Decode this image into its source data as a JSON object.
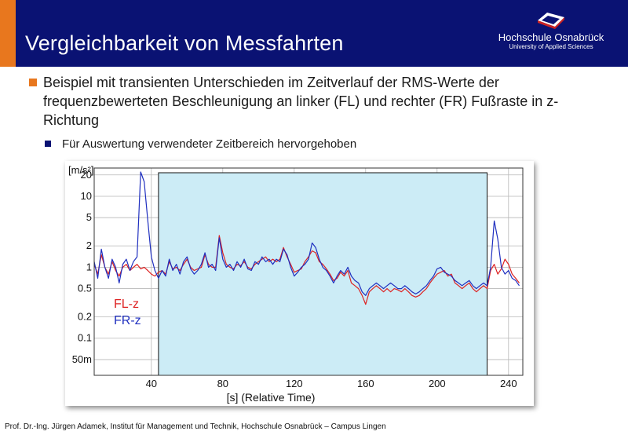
{
  "slide": {
    "title": "Vergleichbarkeit von Messfahrten",
    "logo_name": "Hochschule Osnabrück",
    "logo_sub": "University of Applied Sciences",
    "bullet1": "Beispiel mit transienten Unterschieden im Zeitverlauf der RMS-Werte der frequenzbewerteten Beschleunigung an linker (FL) und rechter (FR) Fußraste in z-Richtung",
    "bullet2": "Für Auswertung verwendeter Zeitbereich hervorgehoben",
    "footer": "Prof. Dr.-Ing. Jürgen Adamek, Institut für Management und Technik, Hochschule Osnabrück – Campus Lingen"
  },
  "colors": {
    "header_bg": "#0a1273",
    "accent": "#e8771e",
    "highlight_fill": "#ccecf6",
    "fl": "#dd2222",
    "fr": "#1f2fbf"
  },
  "chart_data": {
    "type": "line",
    "ylabel": "[m/s²]",
    "xlabel": "[s] (Relative Time)",
    "y_scale": "log",
    "xlim": [
      8,
      248
    ],
    "ylim": [
      0.03,
      25
    ],
    "x_ticks": [
      40,
      80,
      120,
      160,
      200,
      240
    ],
    "x_tick_labels": [
      "40",
      "80",
      "120",
      "160",
      "200",
      "240"
    ],
    "y_ticks": [
      20,
      10,
      5,
      2,
      1,
      0.5,
      0.2,
      0.1,
      0.05
    ],
    "y_tick_labels": [
      "20",
      "10",
      "5",
      "2",
      "1",
      "0.5",
      "0.2",
      "0.1",
      "50m"
    ],
    "grid": true,
    "highlight_range": [
      44,
      228
    ],
    "legend_position": "left-middle",
    "series": [
      {
        "name": "FL-z",
        "color": "#dd2222",
        "x": [
          8,
          10,
          12,
          14,
          16,
          18,
          20,
          22,
          24,
          26,
          28,
          30,
          32,
          34,
          36,
          38,
          40,
          42,
          44,
          46,
          48,
          50,
          52,
          54,
          56,
          58,
          60,
          62,
          64,
          66,
          68,
          70,
          72,
          74,
          76,
          78,
          80,
          82,
          84,
          86,
          88,
          90,
          92,
          94,
          96,
          98,
          100,
          102,
          104,
          106,
          108,
          110,
          112,
          114,
          116,
          118,
          120,
          122,
          124,
          126,
          128,
          130,
          132,
          134,
          136,
          138,
          140,
          142,
          144,
          146,
          148,
          150,
          152,
          154,
          156,
          158,
          160,
          162,
          164,
          166,
          168,
          170,
          172,
          174,
          176,
          178,
          180,
          182,
          184,
          186,
          188,
          190,
          192,
          194,
          196,
          198,
          200,
          202,
          204,
          206,
          208,
          210,
          212,
          214,
          216,
          218,
          220,
          222,
          224,
          226,
          228,
          230,
          232,
          234,
          236,
          238,
          240,
          242,
          244,
          246
        ],
        "y": [
          1.1,
          0.8,
          1.5,
          1.0,
          0.8,
          1.2,
          0.9,
          0.75,
          1.0,
          1.1,
          0.9,
          1.0,
          1.1,
          0.95,
          1.0,
          0.9,
          0.8,
          0.75,
          0.85,
          0.9,
          0.8,
          1.2,
          0.95,
          1.0,
          0.9,
          1.1,
          1.3,
          1.0,
          0.9,
          0.95,
          1.0,
          1.5,
          1.1,
          1.0,
          1.0,
          2.8,
          1.6,
          1.1,
          1.0,
          0.95,
          1.1,
          1.05,
          1.2,
          1.0,
          0.95,
          1.1,
          1.2,
          1.3,
          1.4,
          1.2,
          1.3,
          1.2,
          1.3,
          1.9,
          1.4,
          1.1,
          0.85,
          0.9,
          0.95,
          1.2,
          1.4,
          1.7,
          1.6,
          1.2,
          1.1,
          0.95,
          0.8,
          0.65,
          0.7,
          0.85,
          0.75,
          0.9,
          0.6,
          0.55,
          0.5,
          0.4,
          0.3,
          0.45,
          0.5,
          0.55,
          0.5,
          0.45,
          0.5,
          0.45,
          0.5,
          0.48,
          0.45,
          0.5,
          0.45,
          0.4,
          0.38,
          0.4,
          0.45,
          0.5,
          0.6,
          0.7,
          0.8,
          0.85,
          0.9,
          0.75,
          0.8,
          0.6,
          0.55,
          0.5,
          0.55,
          0.6,
          0.5,
          0.45,
          0.5,
          0.55,
          0.5,
          0.9,
          1.1,
          0.8,
          0.95,
          1.3,
          1.1,
          0.8,
          0.7,
          0.6
        ]
      },
      {
        "name": "FR-z",
        "color": "#1f2fbf",
        "x": [
          8,
          10,
          12,
          14,
          16,
          18,
          20,
          22,
          24,
          26,
          28,
          30,
          32,
          34,
          36,
          38,
          40,
          42,
          44,
          46,
          48,
          50,
          52,
          54,
          56,
          58,
          60,
          62,
          64,
          66,
          68,
          70,
          72,
          74,
          76,
          78,
          80,
          82,
          84,
          86,
          88,
          90,
          92,
          94,
          96,
          98,
          100,
          102,
          104,
          106,
          108,
          110,
          112,
          114,
          116,
          118,
          120,
          122,
          124,
          126,
          128,
          130,
          132,
          134,
          136,
          138,
          140,
          142,
          144,
          146,
          148,
          150,
          152,
          154,
          156,
          158,
          160,
          162,
          164,
          166,
          168,
          170,
          172,
          174,
          176,
          178,
          180,
          182,
          184,
          186,
          188,
          190,
          192,
          194,
          196,
          198,
          200,
          202,
          204,
          206,
          208,
          210,
          212,
          214,
          216,
          218,
          220,
          222,
          224,
          226,
          228,
          230,
          232,
          234,
          236,
          238,
          240,
          242,
          244,
          246
        ],
        "y": [
          1.2,
          0.7,
          1.8,
          1.0,
          0.7,
          1.3,
          1.0,
          0.6,
          1.1,
          1.3,
          0.9,
          1.2,
          1.4,
          22,
          16,
          4.5,
          1.4,
          0.9,
          0.7,
          0.9,
          0.75,
          1.3,
          0.9,
          1.1,
          0.8,
          1.2,
          1.4,
          0.95,
          0.8,
          0.9,
          1.1,
          1.6,
          1.0,
          1.1,
          0.9,
          2.6,
          1.3,
          1.0,
          1.1,
          0.9,
          1.2,
          1.0,
          1.3,
          0.95,
          0.9,
          1.2,
          1.1,
          1.4,
          1.2,
          1.3,
          1.1,
          1.3,
          1.2,
          1.8,
          1.5,
          1.0,
          0.75,
          0.85,
          1.0,
          1.1,
          1.3,
          2.2,
          1.9,
          1.3,
          1.0,
          0.9,
          0.75,
          0.6,
          0.75,
          0.9,
          0.8,
          1.0,
          0.75,
          0.65,
          0.6,
          0.45,
          0.4,
          0.5,
          0.55,
          0.6,
          0.55,
          0.5,
          0.55,
          0.6,
          0.55,
          0.5,
          0.5,
          0.55,
          0.5,
          0.45,
          0.42,
          0.45,
          0.5,
          0.55,
          0.65,
          0.75,
          0.95,
          1.0,
          0.85,
          0.8,
          0.75,
          0.65,
          0.6,
          0.55,
          0.6,
          0.65,
          0.55,
          0.5,
          0.55,
          0.6,
          0.55,
          1.0,
          4.5,
          2.5,
          1.0,
          0.8,
          0.9,
          0.7,
          0.65,
          0.55
        ]
      }
    ]
  }
}
